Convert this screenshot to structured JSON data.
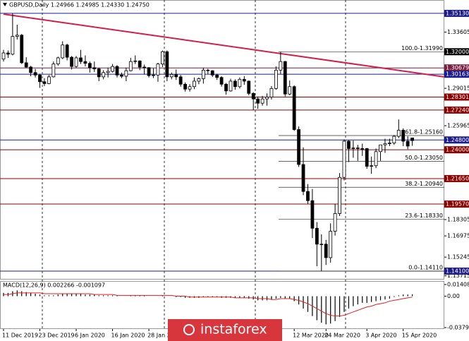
{
  "chart_data": [
    {
      "type": "candlestick",
      "title": "GBPUSD,Daily  1.24966 1.24985 1.24330 1.24750",
      "ylim": [
        1.1341,
        1.3599
      ],
      "bull_color": "#ffffff",
      "bear_color": "#000000",
      "candles": [
        [
          1.314,
          1.3215,
          1.312,
          1.319
        ],
        [
          1.319,
          1.321,
          1.315,
          1.318
        ],
        [
          1.318,
          1.3514,
          1.317,
          1.3325
        ],
        [
          1.3325,
          1.342,
          1.33,
          1.3335
        ],
        [
          1.3335,
          1.3345,
          1.31,
          1.311
        ],
        [
          1.311,
          1.3155,
          1.307,
          1.3075
        ],
        [
          1.3075,
          1.3085,
          1.3,
          1.303
        ],
        [
          1.303,
          1.306,
          1.299,
          1.301
        ],
        [
          1.301,
          1.302,
          1.2905,
          1.2955
        ],
        [
          1.2955,
          1.2985,
          1.292,
          1.294
        ],
        [
          1.294,
          1.301,
          1.2935,
          1.2995
        ],
        [
          1.2995,
          1.312,
          1.299,
          1.31
        ],
        [
          1.31,
          1.316,
          1.3085,
          1.315
        ],
        [
          1.315,
          1.3285,
          1.314,
          1.3255
        ],
        [
          1.3255,
          1.3265,
          1.313,
          1.3155
        ],
        [
          1.3155,
          1.3165,
          1.3055,
          1.308
        ],
        [
          1.308,
          1.3165,
          1.307,
          1.315
        ],
        [
          1.315,
          1.3215,
          1.31,
          1.312
        ],
        [
          1.312,
          1.317,
          1.308,
          1.3105
        ],
        [
          1.3105,
          1.312,
          1.303,
          1.307
        ],
        [
          1.307,
          1.312,
          1.3035,
          1.306
        ],
        [
          1.306,
          1.307,
          1.296,
          1.2995
        ],
        [
          1.2995,
          1.305,
          1.2975,
          1.303
        ],
        [
          1.303,
          1.307,
          1.299,
          1.304
        ],
        [
          1.304,
          1.31,
          1.303,
          1.308
        ],
        [
          1.308,
          1.309,
          1.299,
          1.301
        ],
        [
          1.301,
          1.303,
          1.2985,
          1.3
        ],
        [
          1.3,
          1.307,
          1.296,
          1.3045
        ],
        [
          1.3045,
          1.315,
          1.304,
          1.312
        ],
        [
          1.312,
          1.317,
          1.31,
          1.3125
        ],
        [
          1.3125,
          1.313,
          1.305,
          1.3075
        ],
        [
          1.3075,
          1.3095,
          1.3015,
          1.307
        ],
        [
          1.307,
          1.3075,
          1.299,
          1.3005
        ],
        [
          1.3005,
          1.3065,
          1.2985,
          1.301
        ],
        [
          1.301,
          1.311,
          1.2955,
          1.31
        ],
        [
          1.31,
          1.321,
          1.3075,
          1.32
        ],
        [
          1.32,
          1.321,
          1.296,
          1.2995
        ],
        [
          1.2995,
          1.303,
          1.2975,
          1.3015
        ],
        [
          1.3015,
          1.3055,
          1.297,
          1.2995
        ],
        [
          1.2995,
          1.301,
          1.2915,
          1.2935
        ],
        [
          1.2935,
          1.295,
          1.2875,
          1.2895
        ],
        [
          1.2895,
          1.2935,
          1.2875,
          1.2915
        ],
        [
          1.2915,
          1.299,
          1.2895,
          1.296
        ],
        [
          1.296,
          1.299,
          1.2935,
          1.298
        ],
        [
          1.298,
          1.307,
          1.294,
          1.305
        ],
        [
          1.305,
          1.306,
          1.302,
          1.3045
        ],
        [
          1.3045,
          1.305,
          1.2995,
          1.301
        ],
        [
          1.301,
          1.302,
          1.297,
          1.299
        ],
        [
          1.299,
          1.3,
          1.2915,
          1.2935
        ],
        [
          1.2935,
          1.2945,
          1.285,
          1.288
        ],
        [
          1.288,
          1.298,
          1.2875,
          1.296
        ],
        [
          1.296,
          1.2975,
          1.289,
          1.2915
        ],
        [
          1.2915,
          1.299,
          1.29,
          1.2975
        ],
        [
          1.2975,
          1.3,
          1.293,
          1.296
        ],
        [
          1.296,
          1.2965,
          1.2845,
          1.286
        ],
        [
          1.286,
          1.287,
          1.2725,
          1.2815
        ],
        [
          1.2815,
          1.2835,
          1.2735,
          1.278
        ],
        [
          1.278,
          1.284,
          1.276,
          1.2815
        ],
        [
          1.2815,
          1.286,
          1.276,
          1.283
        ],
        [
          1.283,
          1.292,
          1.281,
          1.29
        ],
        [
          1.29,
          1.308,
          1.289,
          1.305
        ],
        [
          1.305,
          1.3199,
          1.302,
          1.312
        ],
        [
          1.312,
          1.3125,
          1.2835,
          1.2855
        ],
        [
          1.2855,
          1.2965,
          1.2845,
          1.2915
        ],
        [
          1.2915,
          1.2925,
          1.2555,
          1.2565
        ],
        [
          1.2565,
          1.259,
          1.226,
          1.228
        ],
        [
          1.228,
          1.242,
          1.203,
          1.206
        ],
        [
          1.206,
          1.212,
          1.196,
          1.1985
        ],
        [
          1.1985,
          1.208,
          1.168,
          1.176
        ],
        [
          1.176,
          1.181,
          1.145,
          1.163
        ],
        [
          1.163,
          1.171,
          1.1411,
          1.163
        ],
        [
          1.163,
          1.1665,
          1.146,
          1.152
        ],
        [
          1.152,
          1.18,
          1.148,
          1.1735
        ],
        [
          1.1735,
          1.196,
          1.17,
          1.188
        ],
        [
          1.188,
          1.221,
          1.186,
          1.2175
        ],
        [
          1.2175,
          1.2485,
          1.215,
          1.247
        ],
        [
          1.247,
          1.248,
          1.23,
          1.241
        ],
        [
          1.241,
          1.2475,
          1.2335,
          1.2415
        ],
        [
          1.2415,
          1.244,
          1.231,
          1.241
        ],
        [
          1.241,
          1.245,
          1.235,
          1.241
        ],
        [
          1.241,
          1.2415,
          1.2245,
          1.2265
        ],
        [
          1.2265,
          1.2345,
          1.2205,
          1.227
        ],
        [
          1.227,
          1.241,
          1.225,
          1.2385
        ],
        [
          1.2385,
          1.244,
          1.231,
          1.244
        ],
        [
          1.244,
          1.249,
          1.2375,
          1.245
        ],
        [
          1.245,
          1.249,
          1.243,
          1.2455
        ],
        [
          1.2455,
          1.252,
          1.244,
          1.251
        ],
        [
          1.251,
          1.2647,
          1.2495,
          1.256
        ],
        [
          1.256,
          1.2575,
          1.243,
          1.247
        ],
        [
          1.247,
          1.251,
          1.2405,
          1.243
        ],
        [
          1.2497,
          1.2499,
          1.2433,
          1.2475
        ]
      ],
      "yticks": [
        {
          "value": 1.33605,
          "label": "1.33605"
        },
        {
          "value": 1.29015,
          "label": "1.29015"
        },
        {
          "value": 1.25965,
          "label": "1.25965"
        },
        {
          "value": 1.18305,
          "label": "1.18305"
        },
        {
          "value": 1.16975,
          "label": "1.16975"
        },
        {
          "value": 1.15245,
          "label": "1.15245"
        },
        {
          "value": 1.13715,
          "label": "1.13715"
        }
      ],
      "levels": [
        {
          "value": 1.3513,
          "label": "1.35130",
          "color": "#1c1c8c",
          "line": true
        },
        {
          "value": 1.32,
          "label": "1.32000",
          "color": "#000000",
          "line": false
        },
        {
          "value": 1.30679,
          "label": "1.30679",
          "color": "#7a1f3d",
          "line": true
        },
        {
          "value": 1.30163,
          "label": "1.30163",
          "color": "#1c1c8c",
          "line": true
        },
        {
          "value": 1.28301,
          "label": "1.28301",
          "color": "#8b0000",
          "line": true
        },
        {
          "value": 1.2724,
          "label": "1.27240",
          "color": "#8b0000",
          "line": true
        },
        {
          "value": 1.248,
          "label": "1.24800",
          "color": "#1c1c8c",
          "line": true
        },
        {
          "value": 1.24,
          "label": "1.24000",
          "color": "#8b0000",
          "line": true
        },
        {
          "value": 1.2165,
          "label": "1.21650",
          "color": "#8b0000",
          "line": true
        },
        {
          "value": 1.1957,
          "label": "1.19570",
          "color": "#8b0000",
          "line": true
        },
        {
          "value": 1.141,
          "label": "1.14100",
          "color": "#1c1c8c",
          "line": true
        }
      ],
      "fibonacci": [
        {
          "label": "100.0-1.31990",
          "value": 1.3199
        },
        {
          "label": "61.8-1.25160",
          "value": 1.2516
        },
        {
          "label": "50.0-1.23050",
          "value": 1.2305
        },
        {
          "label": "38.2-1.20940",
          "value": 1.2094
        },
        {
          "label": "23.6-1.18330",
          "value": 1.1833
        },
        {
          "label": "0.0-1.14110",
          "value": 1.1411
        }
      ],
      "trendline": {
        "color": "#d0204a",
        "points": [
          [
            0,
            1.3507
          ],
          [
            97,
            1.2995
          ]
        ]
      }
    },
    {
      "type": "macd",
      "title": "MACD(12,26,9) 0.002266 -0.001097",
      "ylim": [
        -0.037909,
        0.014082
      ],
      "yticks": [
        0.014082,
        {
          "value": 0,
          "label": "0.00"
        },
        -0.037909
      ],
      "series": [
        {
          "name": "MACD",
          "color": "#000000",
          "values": [
            0.004,
            0.004,
            0.006,
            0.007,
            0.006,
            0.005,
            0.004,
            0.003,
            0.002,
            0.001,
            0.001,
            0.001,
            0.002,
            0.003,
            0.003,
            0.003,
            0.003,
            0.003,
            0.002,
            0.002,
            0.002,
            0.001,
            0.001,
            0.001,
            0.001,
            0.001,
            0.0,
            0.0,
            0.001,
            0.001,
            0.001,
            0.001,
            0.0,
            0.0,
            0.0,
            0.001,
            0.0,
            0.0,
            -0.001,
            -0.001,
            -0.002,
            -0.002,
            -0.002,
            -0.002,
            -0.001,
            -0.001,
            -0.001,
            -0.001,
            -0.002,
            -0.002,
            -0.002,
            -0.002,
            -0.002,
            -0.002,
            -0.003,
            -0.004,
            -0.005,
            -0.005,
            -0.005,
            -0.004,
            -0.003,
            -0.002,
            -0.003,
            -0.003,
            -0.006,
            -0.01,
            -0.015,
            -0.019,
            -0.024,
            -0.029,
            -0.032,
            -0.034,
            -0.033,
            -0.03,
            -0.025,
            -0.019,
            -0.015,
            -0.012,
            -0.01,
            -0.008,
            -0.008,
            -0.007,
            -0.006,
            -0.005,
            -0.004,
            -0.003,
            -0.001,
            0.001,
            0.002,
            0.002,
            0.002266
          ]
        },
        {
          "name": "Signal",
          "color": "#e02020",
          "values": [
            0.002,
            0.002,
            0.003,
            0.004,
            0.004,
            0.004,
            0.004,
            0.004,
            0.004,
            0.003,
            0.003,
            0.003,
            0.003,
            0.003,
            0.003,
            0.003,
            0.003,
            0.003,
            0.003,
            0.003,
            0.002,
            0.002,
            0.002,
            0.002,
            0.002,
            0.001,
            0.001,
            0.001,
            0.001,
            0.001,
            0.001,
            0.001,
            0.001,
            0.001,
            0.001,
            0.001,
            0.001,
            0.001,
            0.0,
            0.0,
            0.0,
            -0.001,
            -0.001,
            -0.001,
            -0.001,
            -0.001,
            -0.001,
            -0.001,
            -0.001,
            -0.001,
            -0.001,
            -0.002,
            -0.002,
            -0.002,
            -0.002,
            -0.002,
            -0.003,
            -0.003,
            -0.003,
            -0.004,
            -0.004,
            -0.003,
            -0.003,
            -0.003,
            -0.004,
            -0.005,
            -0.007,
            -0.009,
            -0.012,
            -0.015,
            -0.018,
            -0.021,
            -0.023,
            -0.024,
            -0.024,
            -0.023,
            -0.021,
            -0.019,
            -0.017,
            -0.015,
            -0.013,
            -0.012,
            -0.01,
            -0.009,
            -0.008,
            -0.006,
            -0.005,
            -0.004,
            -0.003,
            -0.002,
            -0.001097
          ]
        }
      ],
      "xticks": [
        {
          "value": 0,
          "label": "11 Dec 2019"
        },
        {
          "value": 8,
          "label": "23 Dec 2019"
        },
        {
          "value": 16,
          "label": "6 Jan 2020"
        },
        {
          "value": 24,
          "label": "16 Jan 2020"
        },
        {
          "value": 32,
          "label": "28 Jan 2020"
        },
        {
          "value": 64,
          "label": "12 Mar 2020"
        },
        {
          "value": 71,
          "label": "24 Mar 2020"
        },
        {
          "value": 80,
          "label": "3 Apr 2020"
        },
        {
          "value": 88,
          "label": "15 Apr 2020"
        }
      ]
    }
  ],
  "watermark": "instaforex"
}
